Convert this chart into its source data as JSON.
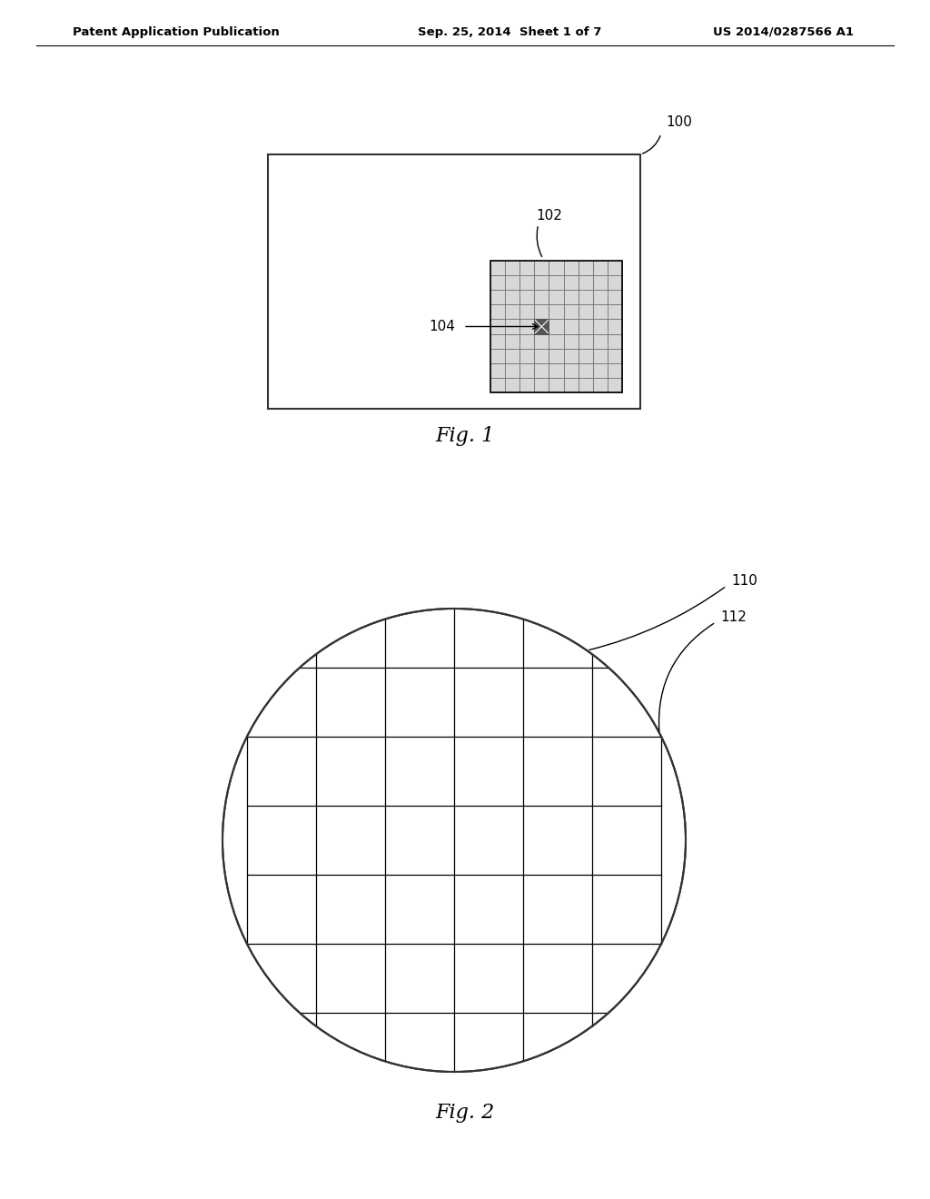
{
  "bg_color": "#ffffff",
  "header_left": "Patent Application Publication",
  "header_mid": "Sep. 25, 2014  Sheet 1 of 7",
  "header_right": "US 2014/0287566 A1",
  "fig1_label": "Fig. 1",
  "fig2_label": "Fig. 2",
  "label_100": "100",
  "label_102": "102",
  "label_104": "104",
  "label_110": "110",
  "label_112": "112",
  "chip_grid_rows": 9,
  "chip_grid_cols": 9,
  "wafer_grid_rows": 7,
  "wafer_grid_cols": 6
}
